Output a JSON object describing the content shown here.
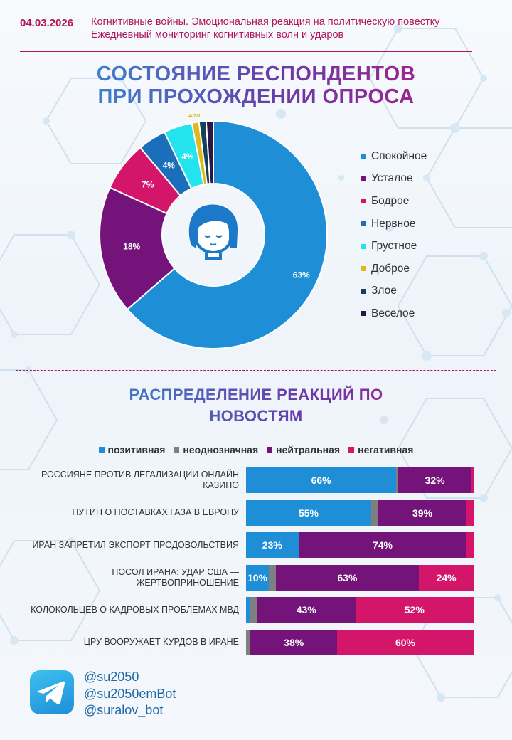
{
  "header": {
    "date": "04.03.2026",
    "subtitle_line1": "Когнитивные войны. Эмоциональная реакция на политическую повестку",
    "subtitle_line2": "Ежедневный мониторинг когнитивных волн и ударов"
  },
  "section1": {
    "title_line1": "СОСТОЯНИЕ РЕСПОНДЕНТОВ",
    "title_line2": "ПРИ ПРОХОЖДЕНИИ ОПРОСА",
    "center_icon": "woman-face-icon"
  },
  "section2": {
    "title_line1": "РАСПРЕДЕЛЕНИЕ РЕАКЦИЙ ПО",
    "title_line2": "НОВОСТЯМ"
  },
  "footer": {
    "icon": "telegram-icon",
    "handles": [
      "@su2050",
      "@su2050emBot",
      "@suralov_bot"
    ]
  },
  "chart_data": [
    {
      "type": "pie",
      "donut": true,
      "legend_position": "right",
      "categories": [
        "Спокойное",
        "Усталое",
        "Бодрое",
        "Нервное",
        "Грустное",
        "Доброе",
        "Злое",
        "Веселое"
      ],
      "values": [
        63,
        18,
        7,
        4,
        4,
        1,
        1,
        1
      ],
      "labels": [
        "63%",
        "18%",
        "7%",
        "4%",
        "4%",
        "1%",
        "",
        ""
      ],
      "colors": [
        "#1e8fd6",
        "#74147a",
        "#d4166a",
        "#1b6fba",
        "#22e3ee",
        "#e0b81a",
        "#14405e",
        "#2a1844"
      ]
    },
    {
      "type": "bar",
      "orientation": "horizontal",
      "stacked": true,
      "legend_position": "top",
      "categories": [
        "Россияне против легализации онлайн казино",
        "Путин о поставках газа в Европу",
        "Иран запретил экспорт продовольствия",
        "Посол Ирана: удар США — жертвоприношение",
        "Колокольцев о кадровых проблемах МВД",
        "ЦРУ вооружает курдов в Иране"
      ],
      "series": [
        {
          "name": "позитивная",
          "color": "#1e8fd6",
          "values": [
            66,
            55,
            23,
            10,
            2,
            0
          ]
        },
        {
          "name": "неоднозначная",
          "color": "#7f7f7f",
          "values": [
            1,
            3,
            0,
            3,
            3,
            2
          ]
        },
        {
          "name": "нейтральная",
          "color": "#74147a",
          "values": [
            32,
            39,
            74,
            63,
            43,
            38
          ]
        },
        {
          "name": "негативная",
          "color": "#d4166a",
          "values": [
            1,
            3,
            3,
            24,
            52,
            60
          ]
        }
      ],
      "labels": [
        [
          "66%",
          "",
          "32%",
          ""
        ],
        [
          "55%",
          "",
          "39%",
          ""
        ],
        [
          "23%",
          "",
          "74%",
          ""
        ],
        [
          "10%",
          "",
          "63%",
          "24%"
        ],
        [
          "",
          "",
          "43%",
          "52%"
        ],
        [
          "",
          "",
          "38%",
          "60%"
        ]
      ]
    }
  ]
}
